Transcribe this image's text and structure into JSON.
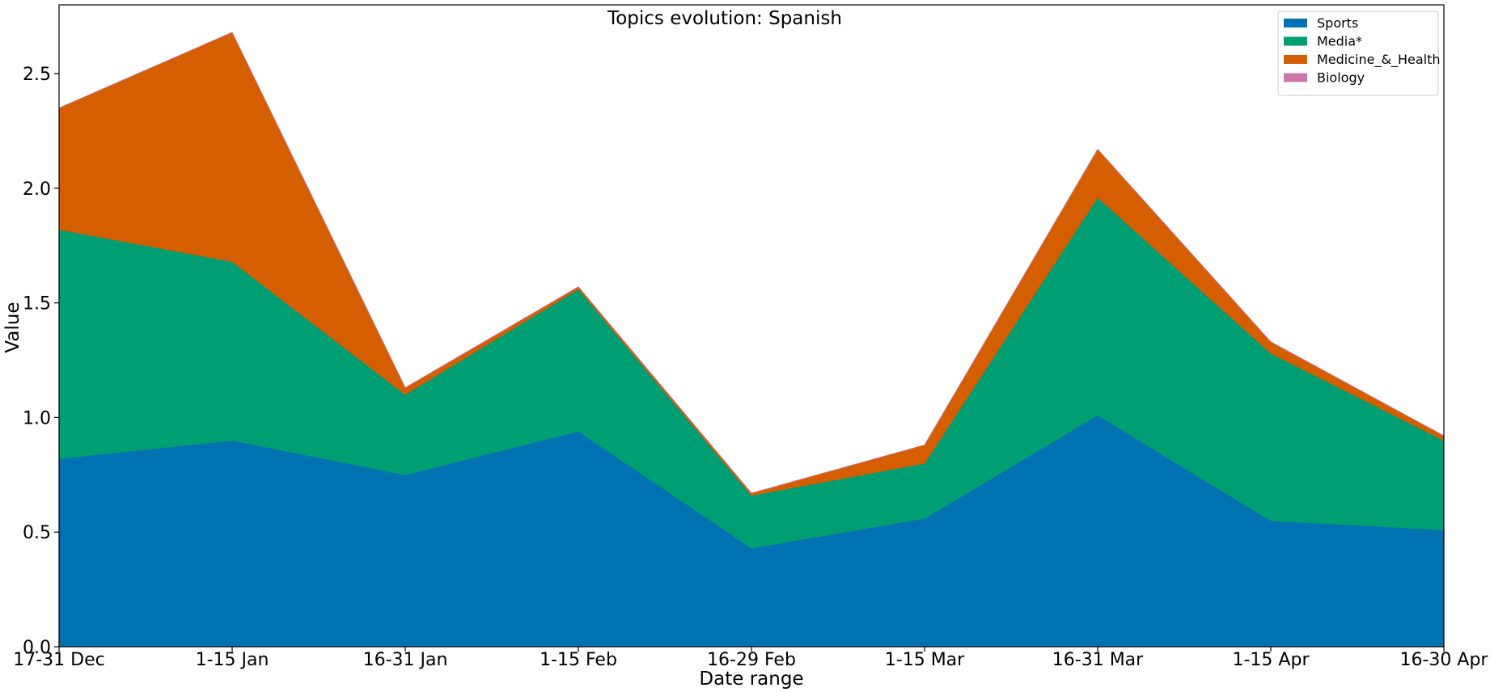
{
  "chart_data": {
    "type": "area",
    "stacked": true,
    "title": "Topics evolution: Spanish",
    "xlabel": "Date range",
    "ylabel": "Value",
    "categories": [
      "17-31 Dec",
      "1-15 Jan",
      "16-31 Jan",
      "1-15 Feb",
      "16-29 Feb",
      "1-15 Mar",
      "16-31 Mar",
      "1-15 Apr",
      "16-30 Apr"
    ],
    "ylim": [
      0,
      2.8
    ],
    "yticks": [
      "0.0",
      "0.5",
      "1.0",
      "1.5",
      "2.0",
      "2.5"
    ],
    "grid": false,
    "legend_position": "top-right",
    "series": [
      {
        "name": "Sports",
        "color": "#0072b2",
        "values": [
          0.82,
          0.9,
          0.75,
          0.94,
          0.43,
          0.56,
          1.01,
          0.55,
          0.51
        ]
      },
      {
        "name": "Media*",
        "color": "#009e73",
        "values": [
          1.0,
          0.78,
          0.35,
          0.62,
          0.23,
          0.24,
          0.95,
          0.73,
          0.39
        ]
      },
      {
        "name": "Medicine_&_Health",
        "color": "#d55e00",
        "values": [
          0.53,
          1.0,
          0.03,
          0.01,
          0.01,
          0.08,
          0.21,
          0.05,
          0.02
        ]
      },
      {
        "name": "Biology",
        "color": "#cc79a7",
        "values": [
          0,
          0,
          0,
          0,
          0,
          0,
          0,
          0,
          0
        ]
      }
    ]
  }
}
